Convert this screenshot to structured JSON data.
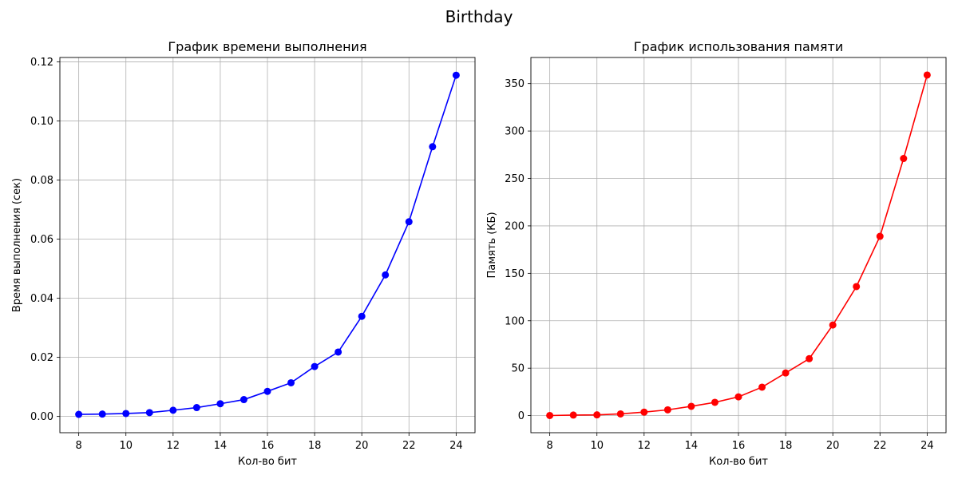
{
  "suptitle": "Birthday",
  "chart_data": [
    {
      "type": "line",
      "title": "График времени выполнения",
      "xlabel": "Кол-во бит",
      "ylabel": "Время выполнения (сек)",
      "xlim": [
        7.2,
        24.8
      ],
      "ylim": [
        -0.0055,
        0.1215
      ],
      "xticks": [
        8,
        10,
        12,
        14,
        16,
        18,
        20,
        22,
        24
      ],
      "yticks": [
        0.0,
        0.02,
        0.04,
        0.06,
        0.08,
        0.1,
        0.12
      ],
      "ytick_labels": [
        "0.00",
        "0.02",
        "0.04",
        "0.06",
        "0.08",
        "0.10",
        "0.12"
      ],
      "grid": true,
      "color": "#0000ff",
      "x": [
        8,
        9,
        10,
        11,
        12,
        13,
        14,
        15,
        16,
        17,
        18,
        19,
        20,
        21,
        22,
        23,
        24
      ],
      "y": [
        0.0007,
        0.0008,
        0.001,
        0.0013,
        0.0021,
        0.003,
        0.0043,
        0.0057,
        0.0085,
        0.0114,
        0.0169,
        0.0218,
        0.0339,
        0.0479,
        0.0659,
        0.0913,
        0.1155
      ]
    },
    {
      "type": "line",
      "title": "График использования памяти",
      "xlabel": "Кол-во бит",
      "ylabel": "Память (КБ)",
      "xlim": [
        7.2,
        24.8
      ],
      "ylim": [
        -18,
        377.5
      ],
      "xticks": [
        8,
        10,
        12,
        14,
        16,
        18,
        20,
        22,
        24
      ],
      "yticks": [
        0,
        50,
        100,
        150,
        200,
        250,
        300,
        350
      ],
      "ytick_labels": [
        "0",
        "50",
        "100",
        "150",
        "200",
        "250",
        "300",
        "350"
      ],
      "grid": true,
      "color": "#ff0000",
      "x": [
        8,
        9,
        10,
        11,
        12,
        13,
        14,
        15,
        16,
        17,
        18,
        19,
        20,
        21,
        22,
        23,
        24
      ],
      "y": [
        0.1,
        0.6,
        0.8,
        1.8,
        3.7,
        6.1,
        9.8,
        14.0,
        19.8,
        30.0,
        45.0,
        60.0,
        95.5,
        136.0,
        189.0,
        271.0,
        359.0
      ]
    }
  ]
}
